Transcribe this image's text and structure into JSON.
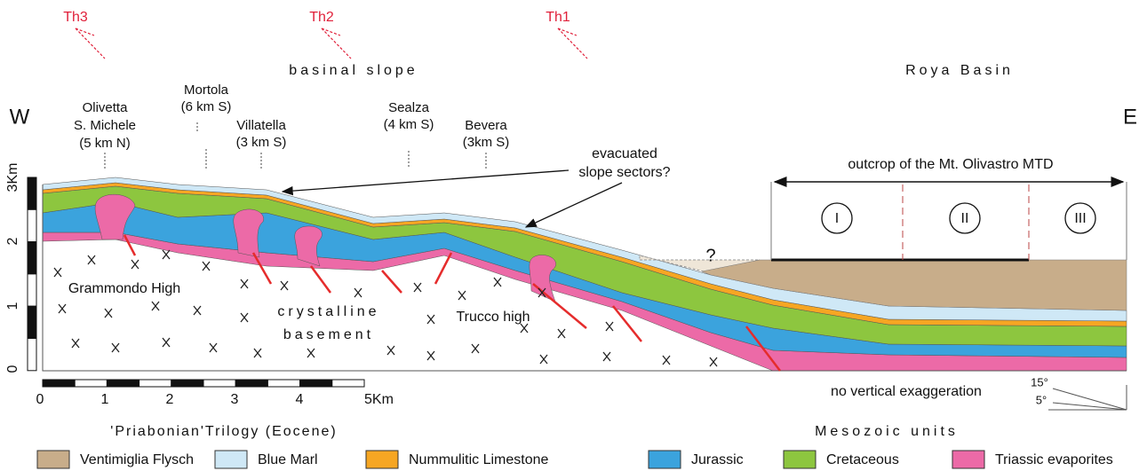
{
  "header": {
    "markers": [
      "Th3",
      "Th2",
      "Th1"
    ],
    "regions": [
      "basinal slope",
      "Roya Basin"
    ]
  },
  "section": {
    "west": "W",
    "east": "E",
    "localities": [
      {
        "lines": [
          "Olivetta",
          "S. Michele",
          "(5 km N)"
        ]
      },
      {
        "lines": [
          "Mortola",
          "(6 km S)"
        ]
      },
      {
        "lines": [
          "Villatella",
          "(3 km S)"
        ]
      },
      {
        "lines": [
          "Sealza",
          "(4 km S)"
        ]
      },
      {
        "lines": [
          "Bevera",
          "(3km S)"
        ]
      }
    ],
    "evacuated": [
      "evacuated",
      "slope sectors?"
    ],
    "outcrop": "outcrop of the Mt. Olivastro MTD",
    "units": [
      "I",
      "II",
      "III"
    ],
    "question": "?",
    "grammondo": "Grammondo High",
    "basement": [
      "crystalline",
      "basement"
    ],
    "trucco": "Trucco high"
  },
  "scales": {
    "vertical": [
      "3Km",
      "2",
      "1",
      "0"
    ],
    "horizontal": [
      "0",
      "1",
      "2",
      "3",
      "4",
      "5Km"
    ],
    "note": "no vertical exaggeration",
    "angles": [
      "15°",
      "5°"
    ]
  },
  "legend": {
    "groups": [
      "'Priabonian'Trilogy (Eocene)",
      "Mesozoic units"
    ],
    "items": [
      {
        "label": "Ventimiglia Flysch",
        "color": "#c8ad8a"
      },
      {
        "label": "Blue Marl",
        "color": "#cfe8f6"
      },
      {
        "label": "Nummulitic Limestone",
        "color": "#f6a623"
      },
      {
        "label": "Jurassic",
        "color": "#3ba3dd"
      },
      {
        "label": "Cretaceous",
        "color": "#8dc63f"
      },
      {
        "label": "Triassic evaporites",
        "color": "#ec6aa7"
      }
    ]
  }
}
